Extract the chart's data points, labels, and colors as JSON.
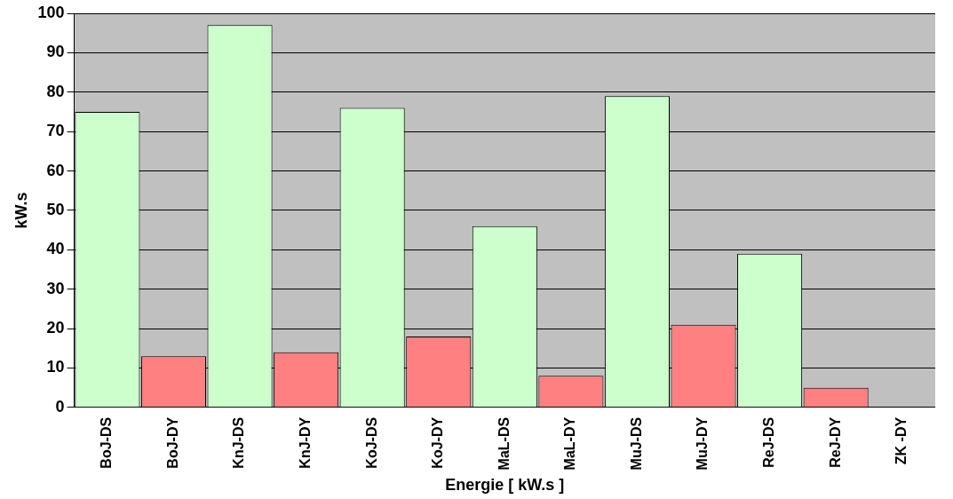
{
  "chart_data": {
    "type": "bar",
    "xlabel": "Energie [ kW.s ]",
    "ylabel": "kW.s",
    "categories": [
      "BoJ-DS",
      "BoJ-DY",
      "KnJ-DS",
      "KnJ-DY",
      "KoJ-DS",
      "KoJ-DY",
      "MaL-DS",
      "MaL-DY",
      "MuJ-DS",
      "MuJ-DY",
      "ReJ-DS",
      "ReJ-DY",
      "ZK -DY"
    ],
    "values": [
      75,
      13,
      97,
      14,
      76,
      18,
      46,
      8,
      79,
      21,
      39,
      5,
      0
    ],
    "colors": [
      "#ccffcc",
      "#ff8080",
      "#ccffcc",
      "#ff8080",
      "#ccffcc",
      "#ff8080",
      "#ccffcc",
      "#ff8080",
      "#ccffcc",
      "#ff8080",
      "#ccffcc",
      "#ff8080",
      "#ff8080"
    ],
    "ylim": [
      0,
      100
    ],
    "yticks": [
      0,
      10,
      20,
      30,
      40,
      50,
      60,
      70,
      80,
      90,
      100
    ],
    "grid": "y"
  }
}
